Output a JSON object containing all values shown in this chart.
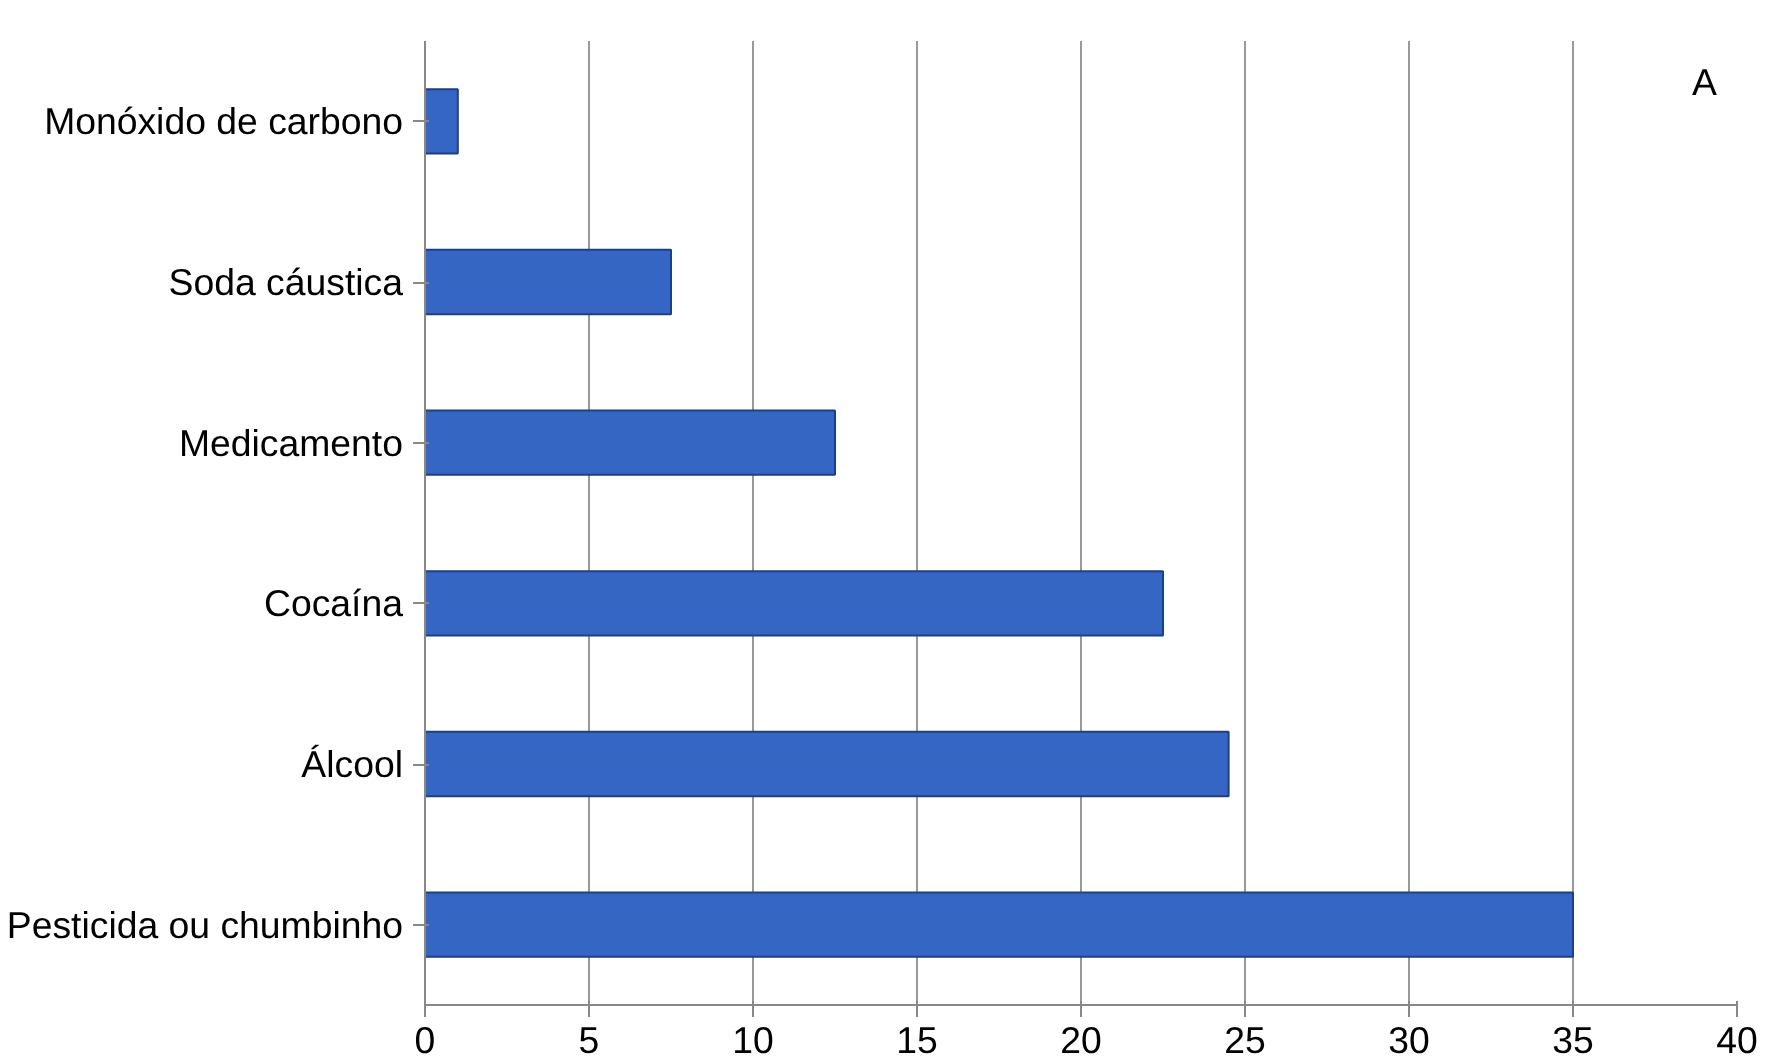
{
  "chart_data": {
    "type": "bar",
    "orientation": "horizontal",
    "categories": [
      "Monóxido de carbono",
      "Soda cáustica",
      "Medicamento",
      "Cocaína",
      "Álcool",
      "Pesticida ou chumbinho"
    ],
    "values": [
      1,
      7.5,
      12.5,
      22.5,
      24.5,
      35
    ],
    "color": "#3566c4",
    "xlim": [
      0,
      40
    ],
    "xticks": [
      0,
      5,
      10,
      15,
      20,
      25,
      30,
      35,
      40
    ],
    "grid": "x",
    "annotations": [
      "A"
    ]
  }
}
